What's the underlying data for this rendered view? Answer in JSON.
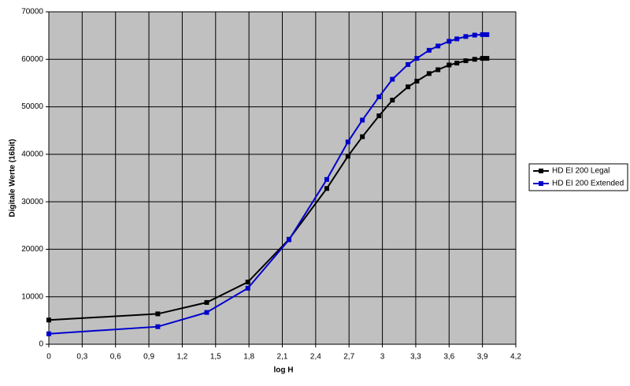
{
  "chart_data": {
    "type": "line",
    "x_label": "log H",
    "y_label": "Digitale Werte (16bit)",
    "x": [
      0,
      0.98,
      1.42,
      1.79,
      2.16,
      2.5,
      2.69,
      2.82,
      2.97,
      3.09,
      3.23,
      3.31,
      3.42,
      3.5,
      3.6,
      3.67,
      3.75,
      3.83,
      3.9,
      3.94
    ],
    "series": [
      {
        "name": "HD EI 200 Legal",
        "color": "#000000",
        "values": [
          5100,
          6400,
          8800,
          13100,
          22100,
          32800,
          39600,
          43700,
          48100,
          51400,
          54200,
          55400,
          57000,
          57800,
          58800,
          59200,
          59700,
          60000,
          60200,
          60200
        ]
      },
      {
        "name": "HD EI 200 Extended",
        "color": "#0000cc",
        "values": [
          2200,
          3700,
          6700,
          11800,
          22000,
          34700,
          42600,
          47200,
          52100,
          55800,
          58900,
          60200,
          61900,
          62800,
          63800,
          64300,
          64800,
          65100,
          65200,
          65200
        ]
      }
    ],
    "xlim": [
      0,
      4.2
    ],
    "xticks": [
      0,
      {
        "value": 0.3,
        "label": "0,3"
      },
      {
        "value": 0.6,
        "label": "0,6"
      },
      {
        "value": 0.9,
        "label": "0,9"
      },
      {
        "value": 1.2,
        "label": "1,2"
      },
      {
        "value": 1.5,
        "label": "1,5"
      },
      {
        "value": 1.8,
        "label": "1,8"
      },
      {
        "value": 2.1,
        "label": "2,1"
      },
      {
        "value": 2.4,
        "label": "2,4"
      },
      {
        "value": 2.7,
        "label": "2,7"
      },
      3,
      {
        "value": 3.3,
        "label": "3,3"
      },
      {
        "value": 3.6,
        "label": "3,6"
      },
      {
        "value": 3.9,
        "label": "3,9"
      },
      {
        "value": 4.2,
        "label": "4,2"
      }
    ],
    "ylim": [
      0,
      70000
    ],
    "yticks": [
      0,
      10000,
      20000,
      30000,
      40000,
      50000,
      60000,
      70000
    ],
    "grid": true,
    "legend": "right",
    "plot_background": "#c0c0c0"
  }
}
